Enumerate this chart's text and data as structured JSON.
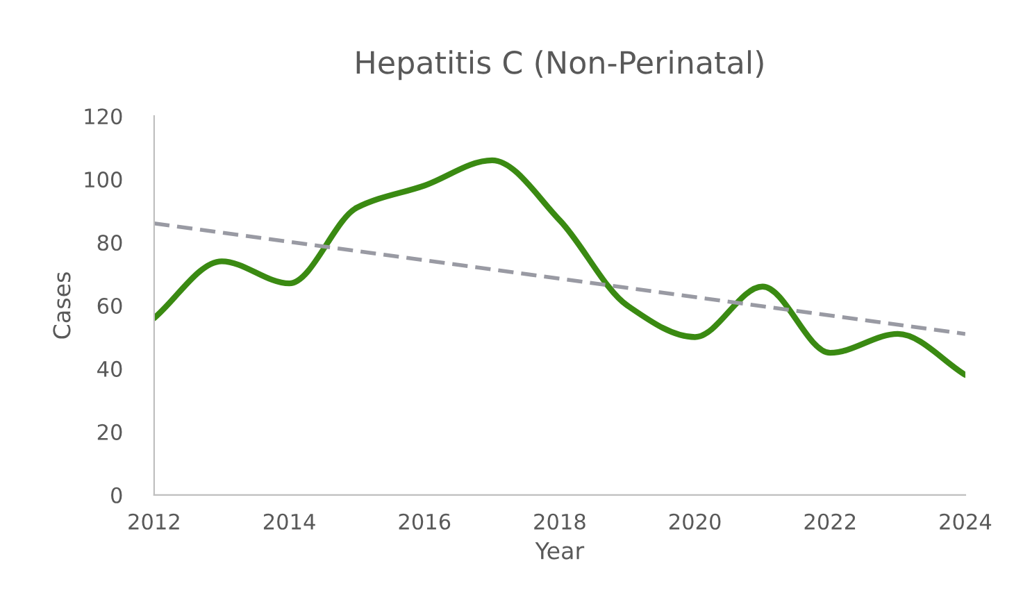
{
  "chart_data": {
    "type": "line",
    "title": "Hepatitis C (Non-Perinatal)",
    "xlabel": "Year",
    "ylabel": "Cases",
    "x": [
      2012,
      2013,
      2014,
      2015,
      2016,
      2017,
      2018,
      2019,
      2020,
      2021,
      2022,
      2023,
      2024
    ],
    "series": [
      {
        "color": "#3a8a12",
        "values": [
          56,
          74,
          67,
          91,
          98,
          106,
          87,
          60,
          50,
          66,
          45,
          51,
          38
        ],
        "line_style": "solid"
      },
      {
        "color": "#999aa3",
        "x": [
          2012,
          2024
        ],
        "values": [
          86,
          51
        ],
        "line_style": "dashed"
      }
    ],
    "xlim": [
      2012,
      2024
    ],
    "xticks": [
      2012,
      2014,
      2016,
      2018,
      2020,
      2022,
      2024
    ],
    "ylim": [
      0,
      120
    ],
    "yticks": [
      0,
      20,
      40,
      60,
      80,
      100,
      120
    ],
    "grid": false,
    "marker": "none"
  }
}
